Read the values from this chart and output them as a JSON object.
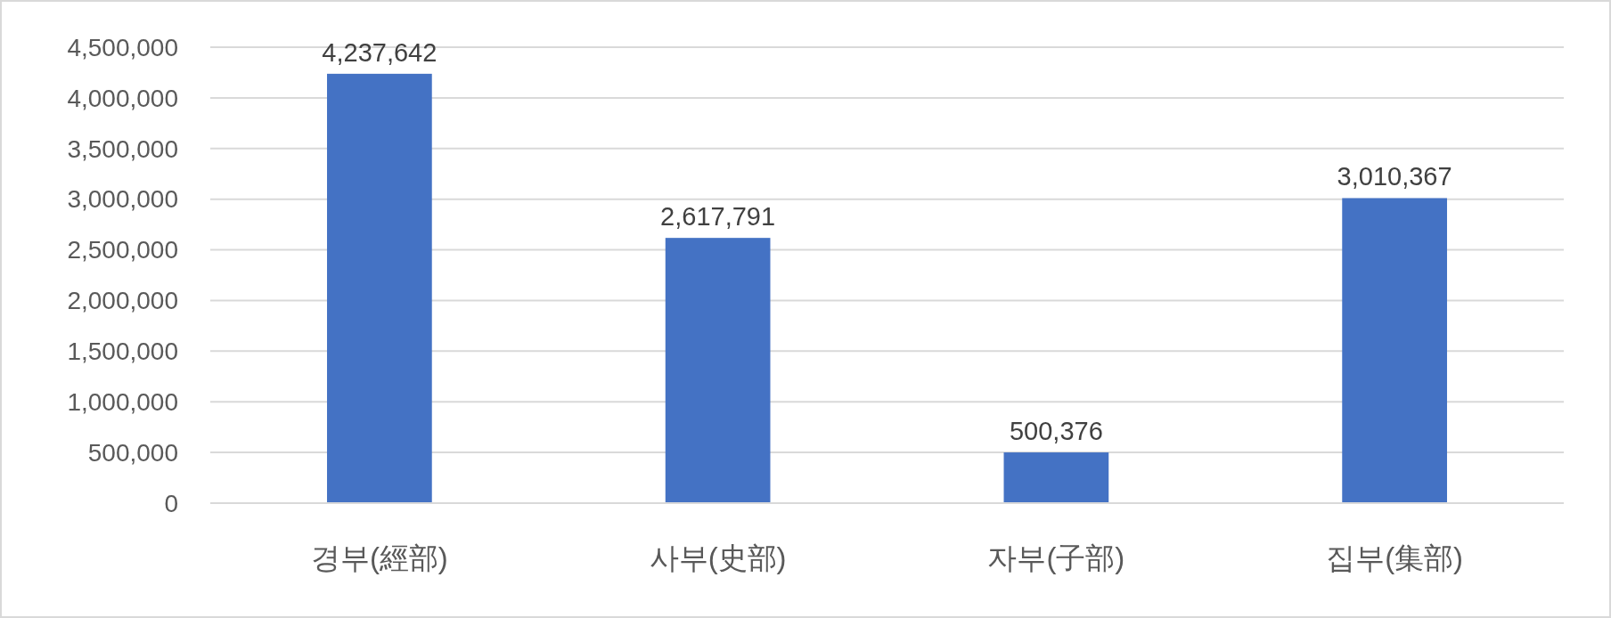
{
  "chart_data": {
    "type": "bar",
    "categories": [
      "경부(經部)",
      "사부(史部)",
      "자부(子部)",
      "집부(集部)"
    ],
    "values": [
      4237642,
      2617791,
      500376,
      3010367
    ],
    "color": "#4472c4",
    "ylim": [
      0,
      4500000
    ],
    "yticks": [
      0,
      {
        "value": 500000,
        "label": "500,000"
      },
      {
        "value": 1000000,
        "label": "1,000,000"
      },
      {
        "value": 1500000,
        "label": "1,500,000"
      },
      {
        "value": 2000000,
        "label": "2,000,000"
      },
      {
        "value": 2500000,
        "label": "2,500,000"
      },
      {
        "value": 3000000,
        "label": "3,000,000"
      },
      {
        "value": 3500000,
        "label": "3,500,000"
      },
      {
        "value": 4000000,
        "label": "4,000,000"
      },
      {
        "value": 4500000,
        "label": "4,500,000"
      }
    ],
    "value_labels": [
      "4,237,642",
      "2,617,791",
      "500,376",
      "3,010,367"
    ],
    "grid": "y"
  }
}
